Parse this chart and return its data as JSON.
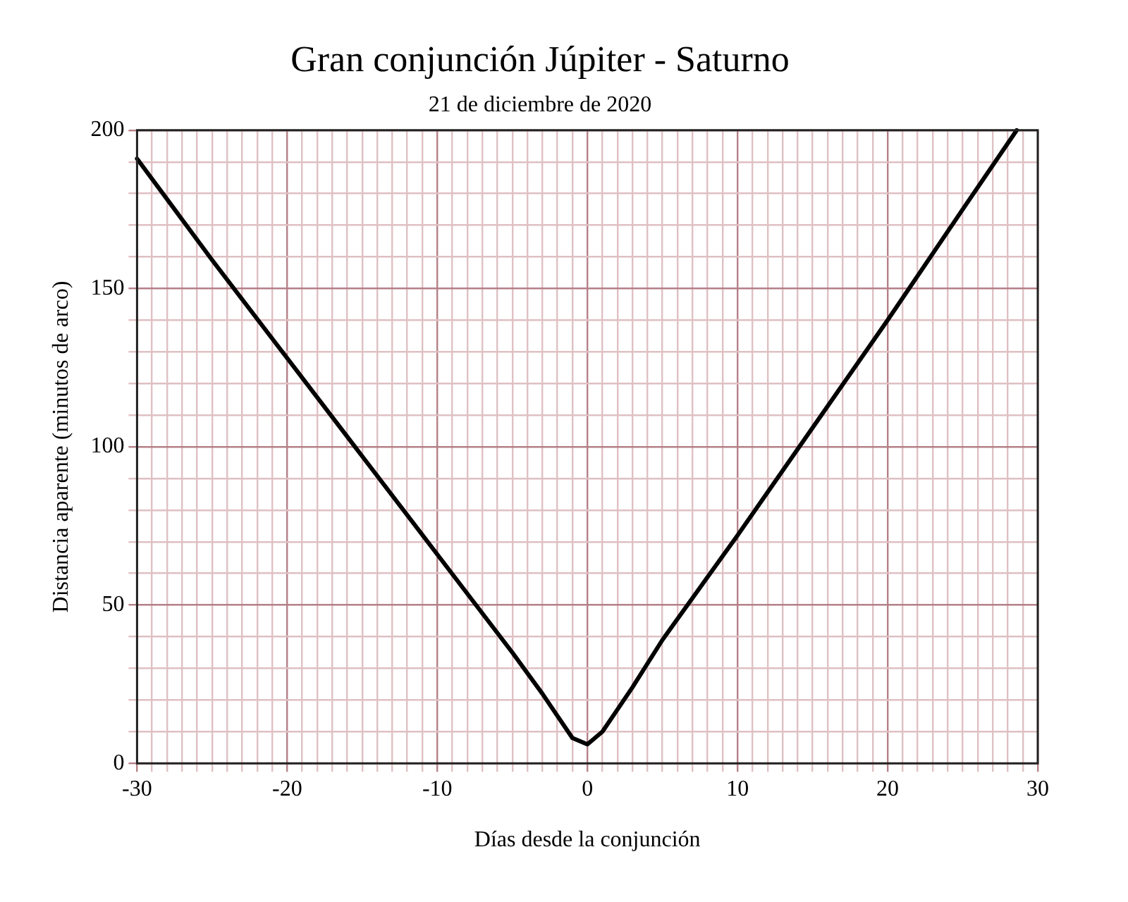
{
  "chart_data": {
    "type": "line",
    "title": "Gran conjunción Júpiter - Saturno",
    "subtitle": "21 de diciembre de 2020",
    "xlabel": "Días desde la conjunción",
    "ylabel": "Distancia aparente (minutos de arco)",
    "series": [
      {
        "color": "#000000",
        "x": [
          -30,
          -25,
          -20,
          -15,
          -10,
          -5,
          -3,
          -2,
          -1,
          0,
          1,
          2,
          3,
          5,
          10,
          15,
          20,
          25,
          28.6
        ],
        "values": [
          191,
          159,
          128,
          97,
          66,
          35,
          22,
          15,
          8,
          6,
          10,
          17,
          24,
          39,
          72,
          106,
          140,
          175,
          200
        ]
      }
    ],
    "xlim": [
      -30,
      30
    ],
    "ylim": [
      0,
      200
    ],
    "xticks": [
      -30,
      {
        "value": -29,
        "label": null
      },
      {
        "value": -28,
        "label": null
      },
      {
        "value": -27,
        "label": null
      },
      {
        "value": -26,
        "label": null
      },
      {
        "value": -25,
        "label": null
      },
      {
        "value": -24,
        "label": null
      },
      {
        "value": -23,
        "label": null
      },
      {
        "value": -22,
        "label": null
      },
      {
        "value": -21,
        "label": null
      },
      -20,
      {
        "value": -19,
        "label": null
      },
      {
        "value": -18,
        "label": null
      },
      {
        "value": -17,
        "label": null
      },
      {
        "value": -16,
        "label": null
      },
      {
        "value": -15,
        "label": null
      },
      {
        "value": -14,
        "label": null
      },
      {
        "value": -13,
        "label": null
      },
      {
        "value": -12,
        "label": null
      },
      {
        "value": -11,
        "label": null
      },
      -10,
      {
        "value": -9,
        "label": null
      },
      {
        "value": -8,
        "label": null
      },
      {
        "value": -7,
        "label": null
      },
      {
        "value": -6,
        "label": null
      },
      {
        "value": -5,
        "label": null
      },
      {
        "value": -4,
        "label": null
      },
      {
        "value": -3,
        "label": null
      },
      {
        "value": -2,
        "label": null
      },
      {
        "value": -1,
        "label": null
      },
      0,
      {
        "value": 1,
        "label": null
      },
      {
        "value": 2,
        "label": null
      },
      {
        "value": 3,
        "label": null
      },
      {
        "value": 4,
        "label": null
      },
      {
        "value": 5,
        "label": null
      },
      {
        "value": 6,
        "label": null
      },
      {
        "value": 7,
        "label": null
      },
      {
        "value": 8,
        "label": null
      },
      {
        "value": 9,
        "label": null
      },
      10,
      {
        "value": 11,
        "label": null
      },
      {
        "value": 12,
        "label": null
      },
      {
        "value": 13,
        "label": null
      },
      {
        "value": 14,
        "label": null
      },
      {
        "value": 15,
        "label": null
      },
      {
        "value": 16,
        "label": null
      },
      {
        "value": 17,
        "label": null
      },
      {
        "value": 18,
        "label": null
      },
      {
        "value": 19,
        "label": null
      },
      20,
      {
        "value": 21,
        "label": null
      },
      {
        "value": 22,
        "label": null
      },
      {
        "value": 23,
        "label": null
      },
      {
        "value": 24,
        "label": null
      },
      {
        "value": 25,
        "label": null
      },
      {
        "value": 26,
        "label": null
      },
      {
        "value": 27,
        "label": null
      },
      {
        "value": 28,
        "label": null
      },
      {
        "value": 29,
        "label": null
      },
      30
    ],
    "yticks": [
      0,
      {
        "value": 10,
        "label": null
      },
      {
        "value": 20,
        "label": null
      },
      {
        "value": 30,
        "label": null
      },
      {
        "value": 40,
        "label": null
      },
      50,
      {
        "value": 60,
        "label": null
      },
      {
        "value": 70,
        "label": null
      },
      {
        "value": 80,
        "label": null
      },
      {
        "value": 90,
        "label": null
      },
      100,
      {
        "value": 110,
        "label": null
      },
      {
        "value": 120,
        "label": null
      },
      {
        "value": 130,
        "label": null
      },
      {
        "value": 140,
        "label": null
      },
      150,
      {
        "value": 160,
        "label": null
      },
      {
        "value": 170,
        "label": null
      },
      {
        "value": 180,
        "label": null
      },
      {
        "value": 190,
        "label": null
      },
      200
    ],
    "grid": true,
    "marker": "none",
    "line_style": "solid",
    "legend": false
  }
}
